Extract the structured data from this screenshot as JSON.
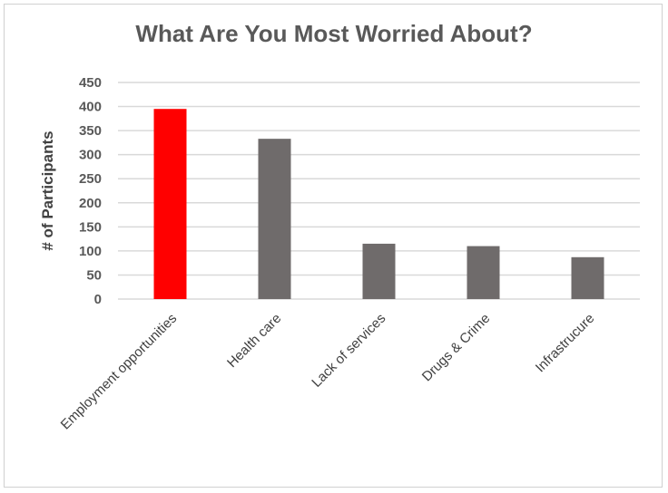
{
  "chart_data": {
    "type": "bar",
    "title": "What Are You Most Worried About?",
    "xlabel": "",
    "ylabel": "# of Participants",
    "categories": [
      "Employment opportunities",
      "Health care",
      "Lack of services",
      "Drugs & Crime",
      "Infrastrucure"
    ],
    "values": [
      395,
      333,
      115,
      110,
      87
    ],
    "ylim": [
      0,
      450
    ],
    "yticks": [
      0,
      50,
      100,
      150,
      200,
      250,
      300,
      350,
      400,
      450
    ],
    "grid": true,
    "legend": "none",
    "colors": [
      "#ff0000",
      "#6f6b6b",
      "#6f6b6b",
      "#6f6b6b",
      "#6f6b6b"
    ],
    "gridline_color": "#d9d9d9"
  }
}
